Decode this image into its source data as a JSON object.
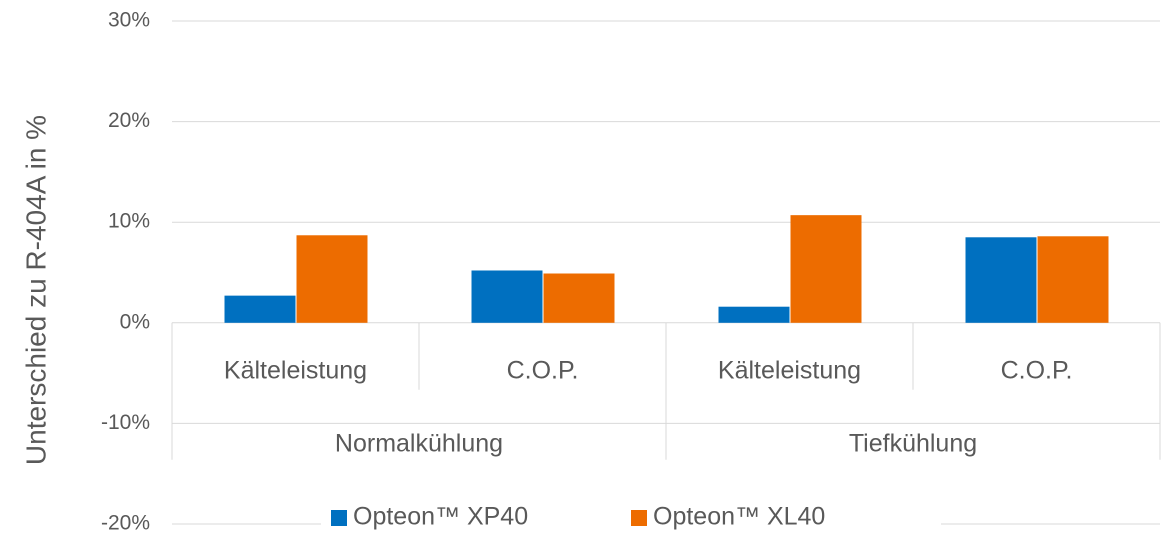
{
  "chart_data": {
    "type": "bar",
    "y_label": "Unterschied zu R-404A in %",
    "groups": [
      {
        "name": "Normalkühlung",
        "categories": [
          "Kälteleistung",
          "C.O.P."
        ]
      },
      {
        "name": "Tiefkühlung",
        "categories": [
          "Kälteleistung",
          "C.O.P."
        ]
      }
    ],
    "series": [
      {
        "name": "Opteon™ XP40",
        "color": "#0070c0",
        "values": [
          2.7,
          5.2,
          1.6,
          8.5
        ]
      },
      {
        "name": "Opteon™ XL40",
        "color": "#ed6c00",
        "values": [
          8.7,
          4.9,
          10.7,
          8.6
        ]
      }
    ],
    "ylim": [
      -20,
      30
    ],
    "yticks": [
      {
        "value": -20,
        "label": "-20%"
      },
      {
        "value": -10,
        "label": "-10%"
      },
      {
        "value": 0,
        "label": "0%"
      },
      {
        "value": 10,
        "label": "10%"
      },
      {
        "value": 20,
        "label": "20%"
      },
      {
        "value": 30,
        "label": "30%"
      }
    ],
    "grid": true,
    "legend": "bottom"
  }
}
